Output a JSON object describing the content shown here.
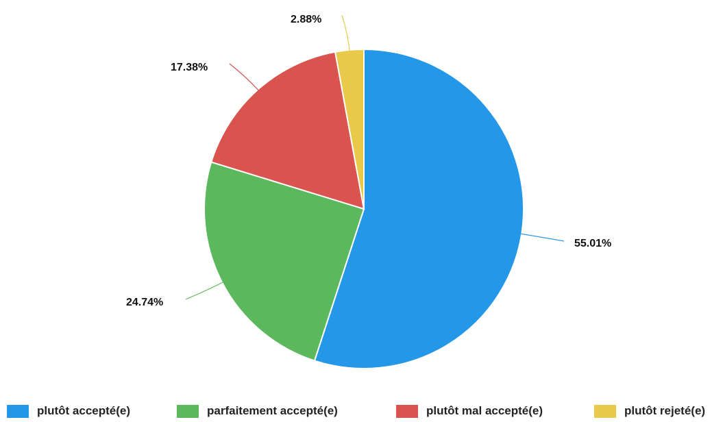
{
  "chart_data": {
    "type": "pie",
    "slices": [
      {
        "label": "plutôt accepté(e)",
        "value": 55.01,
        "value_label": "55.01%",
        "color": "#2597e8"
      },
      {
        "label": "parfaitement accepté(e)",
        "value": 24.74,
        "value_label": "24.74%",
        "color": "#5cb85c"
      },
      {
        "label": "plutôt mal accepté(e)",
        "value": 17.38,
        "value_label": "17.38%",
        "color": "#d9534f"
      },
      {
        "label": "plutôt rejeté(e)",
        "value": 2.88,
        "value_label": "2.88%",
        "color": "#e8c94a"
      }
    ],
    "legend_position": "bottom",
    "start_direction": "clockwise-from-top"
  }
}
